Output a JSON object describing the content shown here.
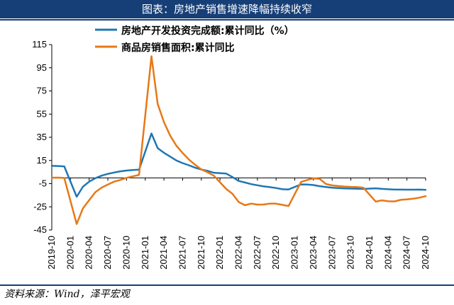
{
  "header": {
    "title": "图表：房地产销售增速降幅持续收窄"
  },
  "footer": {
    "source": "资料来源：Wind，泽平宏观"
  },
  "chart_data": {
    "type": "line",
    "ylim": [
      -45,
      115
    ],
    "yticks": [
      115,
      95,
      75,
      55,
      35,
      15,
      -5,
      -25,
      -45
    ],
    "xticks": [
      "2019-10",
      "2020-01",
      "2020-04",
      "2020-07",
      "2020-10",
      "2021-01",
      "2021-04",
      "2021-07",
      "2021-10",
      "2022-01",
      "2022-04",
      "2022-07",
      "2022-10",
      "2023-01",
      "2023-04",
      "2023-07",
      "2023-10",
      "2024-01",
      "2024-04",
      "2024-07",
      "2024-10"
    ],
    "x_start": "2019-10",
    "legend_position": "top",
    "grid": false,
    "series": [
      {
        "name": "房地产开发投资完成额:累计同比（%）",
        "color": "#1f77b4",
        "x": [
          "2019-10",
          "2019-11",
          "2019-12",
          "2020-02",
          "2020-03",
          "2020-04",
          "2020-05",
          "2020-06",
          "2020-07",
          "2020-08",
          "2020-09",
          "2020-10",
          "2020-11",
          "2020-12",
          "2021-02",
          "2021-03",
          "2021-04",
          "2021-05",
          "2021-06",
          "2021-07",
          "2021-08",
          "2021-09",
          "2021-10",
          "2021-11",
          "2021-12",
          "2022-02",
          "2022-03",
          "2022-04",
          "2022-05",
          "2022-06",
          "2022-07",
          "2022-08",
          "2022-09",
          "2022-10",
          "2022-11",
          "2022-12",
          "2023-02",
          "2023-03",
          "2023-04",
          "2023-05",
          "2023-06",
          "2023-07",
          "2023-08",
          "2023-09",
          "2023-10",
          "2023-11",
          "2023-12",
          "2024-02",
          "2024-03",
          "2024-04",
          "2024-05",
          "2024-06",
          "2024-07",
          "2024-08",
          "2024-09",
          "2024-10"
        ],
        "values": [
          10.3,
          10.2,
          9.9,
          -16.3,
          -7.7,
          -3.3,
          -0.3,
          1.9,
          3.4,
          4.6,
          5.6,
          6.3,
          6.8,
          7.0,
          38.3,
          25.6,
          21.6,
          18.3,
          15.0,
          12.7,
          10.9,
          8.8,
          7.2,
          6.0,
          4.4,
          3.7,
          0.7,
          -2.7,
          -4.0,
          -5.4,
          -6.4,
          -7.4,
          -8.0,
          -8.8,
          -9.8,
          -10.0,
          -5.7,
          -5.8,
          -6.2,
          -7.2,
          -7.9,
          -8.5,
          -8.8,
          -9.1,
          -9.3,
          -9.4,
          -9.6,
          -9.0,
          -9.5,
          -9.8,
          -10.1,
          -10.1,
          -10.2,
          -10.2,
          -10.1,
          -10.3
        ]
      },
      {
        "name": "商品房销售面积:累计同比",
        "color": "#e77817",
        "x": [
          "2019-10",
          "2019-11",
          "2019-12",
          "2020-02",
          "2020-03",
          "2020-04",
          "2020-05",
          "2020-06",
          "2020-07",
          "2020-08",
          "2020-09",
          "2020-10",
          "2020-11",
          "2020-12",
          "2021-02",
          "2021-03",
          "2021-04",
          "2021-05",
          "2021-06",
          "2021-07",
          "2021-08",
          "2021-09",
          "2021-10",
          "2021-11",
          "2021-12",
          "2022-02",
          "2022-03",
          "2022-04",
          "2022-05",
          "2022-06",
          "2022-07",
          "2022-08",
          "2022-09",
          "2022-10",
          "2022-11",
          "2022-12",
          "2023-02",
          "2023-03",
          "2023-04",
          "2023-05",
          "2023-06",
          "2023-07",
          "2023-08",
          "2023-09",
          "2023-10",
          "2023-11",
          "2023-12",
          "2024-02",
          "2024-03",
          "2024-04",
          "2024-05",
          "2024-06",
          "2024-07",
          "2024-08",
          "2024-09",
          "2024-10"
        ],
        "values": [
          0.1,
          0.2,
          -0.1,
          -39.9,
          -26.3,
          -19.3,
          -12.3,
          -8.4,
          -5.8,
          -3.3,
          -1.8,
          0.0,
          1.3,
          2.6,
          104.9,
          63.8,
          48.1,
          36.4,
          27.7,
          21.5,
          15.9,
          11.3,
          7.3,
          4.8,
          1.9,
          -9.6,
          -13.8,
          -20.9,
          -23.6,
          -22.2,
          -23.1,
          -23.0,
          -22.2,
          -22.3,
          -23.3,
          -24.3,
          -3.6,
          -1.8,
          -0.4,
          -0.9,
          -5.3,
          -6.5,
          -7.1,
          -7.5,
          -7.8,
          -8.0,
          -8.5,
          -20.5,
          -19.4,
          -20.2,
          -20.3,
          -19.0,
          -18.6,
          -18.0,
          -17.1,
          -15.8
        ]
      }
    ]
  }
}
